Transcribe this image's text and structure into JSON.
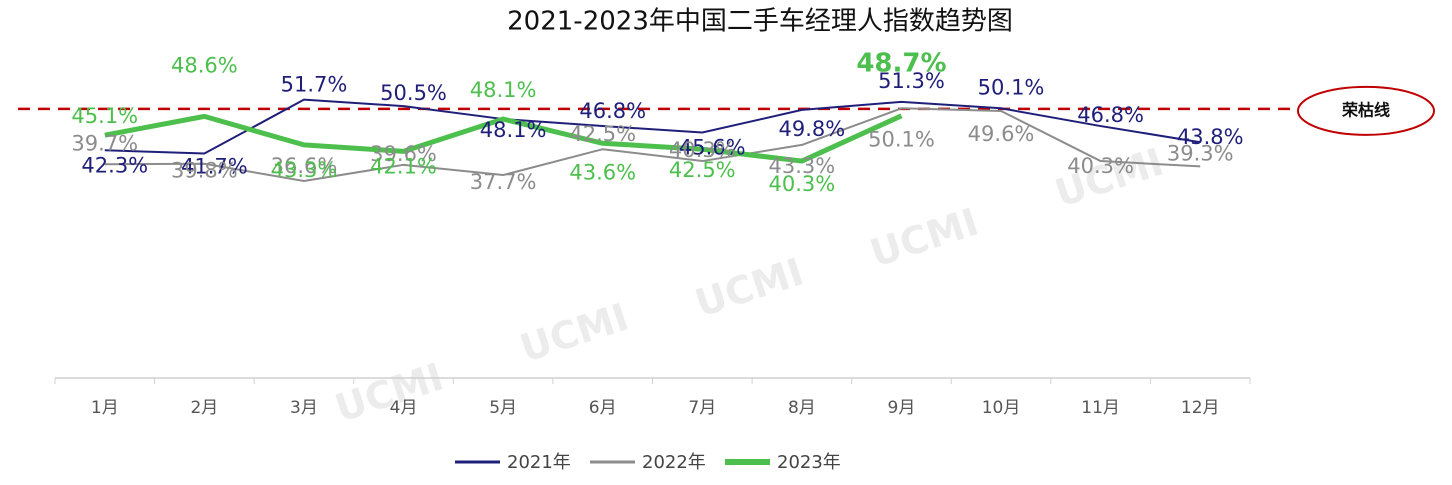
{
  "chart_data": {
    "type": "line",
    "title": "2021-2023年中国二手车经理人指数趋势图",
    "categories": [
      "1月",
      "2月",
      "3月",
      "4月",
      "5月",
      "6月",
      "7月",
      "8月",
      "9月",
      "10月",
      "11月",
      "12月"
    ],
    "series": [
      {
        "name": "2021年",
        "color": "#1f1f7a",
        "values": [
          42.3,
          41.7,
          51.7,
          50.5,
          48.1,
          46.8,
          45.6,
          49.8,
          51.3,
          50.1,
          46.8,
          43.8
        ],
        "value_labels": [
          "42.3%",
          "41.7%",
          "51.7%",
          "50.5%",
          "48.1%",
          "46.8%",
          "45.6%",
          "49.8%",
          "51.3%",
          "50.1%",
          "46.8%",
          "43.8%"
        ]
      },
      {
        "name": "2022年",
        "color": "#8c8c8c",
        "values": [
          39.7,
          39.8,
          36.6,
          39.6,
          37.7,
          42.5,
          40.3,
          43.3,
          50.1,
          49.6,
          40.3,
          39.3
        ],
        "value_labels": [
          "39.7%",
          "39.8%",
          "36.6%",
          "39.6%",
          "37.7%",
          "42.5%",
          "40.3%",
          "43.3%",
          "50.1%",
          "49.6%",
          "40.3%",
          "39.3%"
        ]
      },
      {
        "name": "2023年",
        "color": "#4dbf4d",
        "values": [
          45.1,
          48.6,
          43.3,
          42.1,
          48.1,
          43.6,
          42.5,
          40.3,
          48.7,
          null,
          null,
          null
        ],
        "value_labels": [
          "45.1%",
          "48.6%",
          "43.3%",
          "42.1%",
          "48.1%",
          "43.6%",
          "42.5%",
          "40.3%",
          "48.7%",
          null,
          null,
          null
        ]
      }
    ],
    "ylim": [
      0,
      60
    ],
    "reference_line": {
      "label": "荣枯线",
      "value": 50,
      "color": "#c00000"
    },
    "watermark": "UCMI",
    "legend": "bottom"
  }
}
